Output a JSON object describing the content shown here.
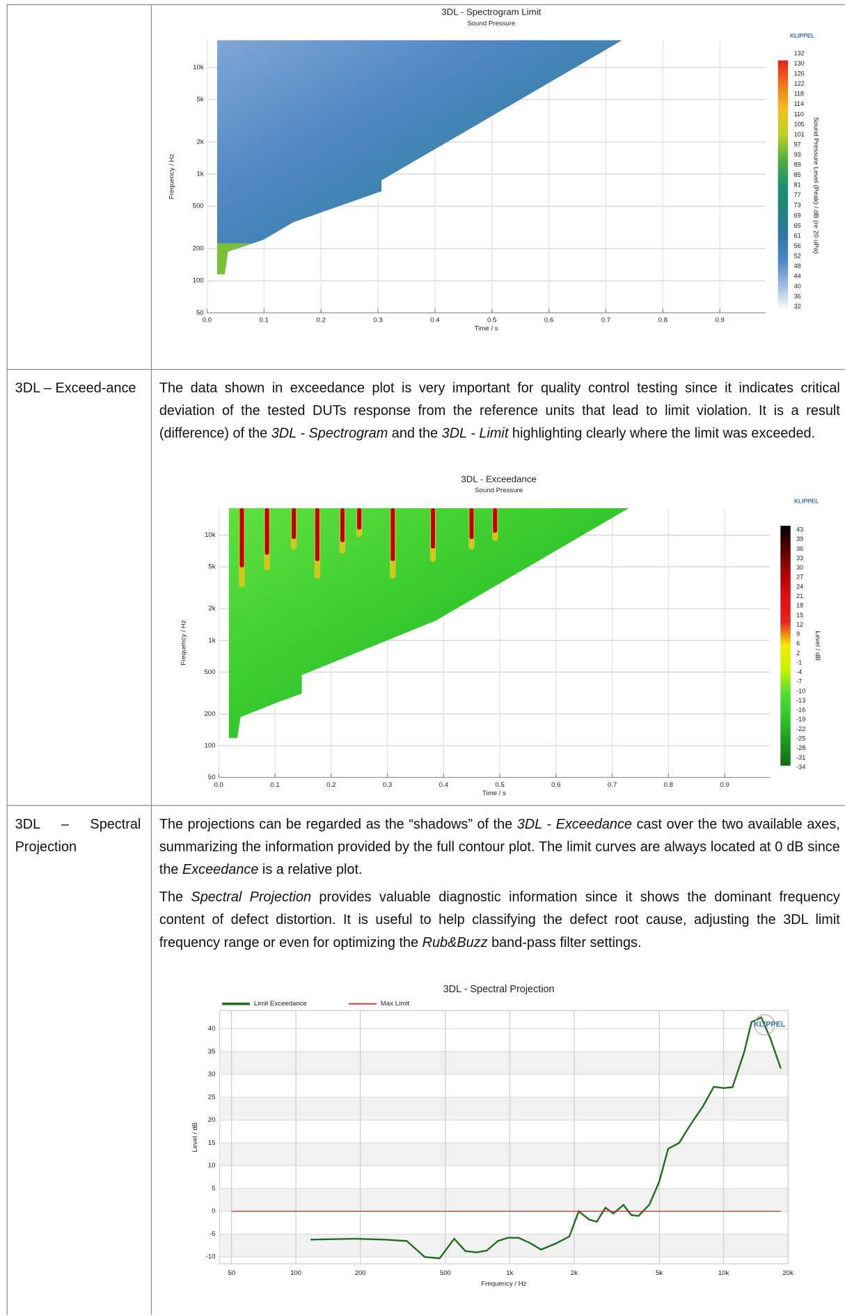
{
  "table": {
    "rows": [
      {
        "chart_data": {
          "type": "contour",
          "title": "3DL - Spectrogram Limit",
          "subtitle": "Sound Pressure",
          "logo_text": "KLIPPEL",
          "x_label": "Time / s",
          "y_label": "Frequency / Hz",
          "log_y": true,
          "xlim": [
            0,
            0.98
          ],
          "xticks": [
            {
              "value": 0,
              "label": "0.0"
            },
            0.1,
            0.2,
            0.3,
            0.4,
            0.5,
            0.6,
            0.7,
            0.8,
            0.9
          ],
          "ylim": [
            50,
            18000
          ],
          "yticks": [
            50,
            100,
            200,
            500,
            {
              "value": 1000,
              "label": "1k"
            },
            {
              "value": 2000,
              "label": "2k"
            },
            {
              "value": 5000,
              "label": "5k"
            },
            {
              "value": 10000,
              "label": "10k"
            }
          ],
          "grid": true,
          "colorbar": {
            "title": "Sound Pressure Level (Peak) / dB (re 20 uPa)",
            "labels": [
              132,
              130,
              126,
              122,
              118,
              114,
              110,
              105,
              101,
              97,
              93,
              89,
              85,
              81,
              77,
              73,
              69,
              65,
              61,
              56,
              52,
              48,
              44,
              40,
              36,
              32
            ],
            "colors": [
              "#e8201a",
              "#f07a1e",
              "#f2c21c",
              "#b9cf2a",
              "#4fae3c",
              "#1f9070",
              "#1f8478",
              "#2f76a8",
              "#4d86c6",
              "#9ebbe0",
              "#ffffff"
            ]
          }
        }
      },
      {
        "label": "3DL – Exceed-ance",
        "paragraphs": [
          [
            {
              "text": "The data shown in exceedance plot is very important for quality control testing since it indicates critical deviation of the tested DUTs response from the reference units that lead to limit violation. It is a result (difference) of the "
            },
            {
              "text": "3DL - Spectrogram",
              "italic": true
            },
            {
              "text": " and the "
            },
            {
              "text": "3DL - Limit",
              "italic": true
            },
            {
              "text": " highlighting clearly where the limit was exceeded."
            }
          ]
        ],
        "chart_data": {
          "type": "contour",
          "title": "3DL - Exceedance",
          "subtitle": "Sound Pressure",
          "logo_text": "KLIPPEL",
          "x_label": "Time / s",
          "y_label": "Frequency / Hz",
          "log_y": true,
          "xlim": [
            0,
            0.98
          ],
          "xticks": [
            {
              "value": 0,
              "label": "0.0"
            },
            0.1,
            0.2,
            0.3,
            0.4,
            0.5,
            0.6,
            0.7,
            0.8,
            0.9
          ],
          "ylim": [
            50,
            18000
          ],
          "yticks": [
            50,
            100,
            200,
            500,
            {
              "value": 1000,
              "label": "1k"
            },
            {
              "value": 2000,
              "label": "2k"
            },
            {
              "value": 5000,
              "label": "5k"
            },
            {
              "value": 10000,
              "label": "10k"
            }
          ],
          "grid": true,
          "colorbar": {
            "title": "Level / dB",
            "labels": [
              43,
              39,
              36,
              33,
              30,
              27,
              24,
              21,
              18,
              15,
              12,
              9,
              6,
              2,
              -1,
              -4,
              -7,
              -10,
              -13,
              -16,
              -19,
              -22,
              -25,
              -28,
              -31,
              -34
            ],
            "colors": [
              "#000000",
              "#5a0000",
              "#b00000",
              "#e01010",
              "#e82020",
              "#f2f000",
              "#c8f000",
              "#50e030",
              "#2cc82c",
              "#1c9a1c",
              "#126a12"
            ]
          }
        }
      },
      {
        "label": "3DL – Spectral Projection",
        "paragraphs": [
          [
            {
              "text": "The projections can be regarded as the “shadows” of the "
            },
            {
              "text": "3DL - Exceedance",
              "italic": true
            },
            {
              "text": " cast over the two available axes, summarizing the information provided by the full contour plot. The limit curves are always located at 0 dB since the "
            },
            {
              "text": "Exceedance",
              "italic": true
            },
            {
              "text": " is a relative plot."
            }
          ],
          [
            {
              "text": "The "
            },
            {
              "text": "Spectral Projection",
              "italic": true
            },
            {
              "text": " provides valuable diagnostic information since it shows the dominant frequency content of defect distortion. It is useful to help classifying the defect root cause, adjusting the 3DL limit frequency range or even for optimizing the "
            },
            {
              "text": "Rub&Buzz",
              "italic": true
            },
            {
              "text": " band-pass filter settings."
            }
          ]
        ],
        "chart_data": {
          "type": "line",
          "title": "3DL - Spectral Projection",
          "logo_text": "KLIPPEL",
          "x_label": "Frequency / Hz",
          "y_label": "Level / dB",
          "log_x": true,
          "grid": true,
          "xlim": [
            44,
            20000
          ],
          "xticks": [
            50,
            100,
            200,
            500,
            {
              "value": 1000,
              "label": "1k"
            },
            {
              "value": 2000,
              "label": "2k"
            },
            {
              "value": 5000,
              "label": "5k"
            },
            {
              "value": 10000,
              "label": "10k"
            },
            {
              "value": 20000,
              "label": "20k"
            }
          ],
          "ylim": [
            -11.5,
            44
          ],
          "yticks": [
            -10,
            -5,
            0,
            5,
            10,
            15,
            20,
            25,
            30,
            35,
            40
          ],
          "series": [
            {
              "name": "Limit Exceedance",
              "color": "#1e6e1e",
              "x": [
                117,
                190,
                260,
                330,
                400,
                470,
                550,
                620,
                700,
                780,
                880,
                980,
                1100,
                1250,
                1400,
                1650,
                1900,
                2100,
                2350,
                2550,
                2800,
                3050,
                3400,
                3700,
                4000,
                4500,
                5000,
                5500,
                6200,
                7000,
                8000,
                9000,
                10000,
                11000,
                12500,
                13500,
                15000,
                16500,
                18500
              ],
              "values": [
                -6.2,
                -6.0,
                -6.2,
                -6.5,
                -10,
                -10.3,
                -6,
                -8.7,
                -9,
                -8.6,
                -6.5,
                -5.8,
                -5.8,
                -7,
                -8.4,
                -7,
                -5.5,
                0,
                -1.8,
                -2.3,
                0.8,
                -0.5,
                1.4,
                -0.8,
                -1,
                1.5,
                6.5,
                13.7,
                15,
                19,
                23,
                27.3,
                27,
                27.2,
                35,
                41.5,
                42.5,
                38,
                31.3
              ]
            },
            {
              "name": "Max Limit",
              "color": "#e02828",
              "x": [
                50,
                18500
              ],
              "values": [
                0,
                0
              ]
            }
          ]
        }
      }
    ]
  }
}
